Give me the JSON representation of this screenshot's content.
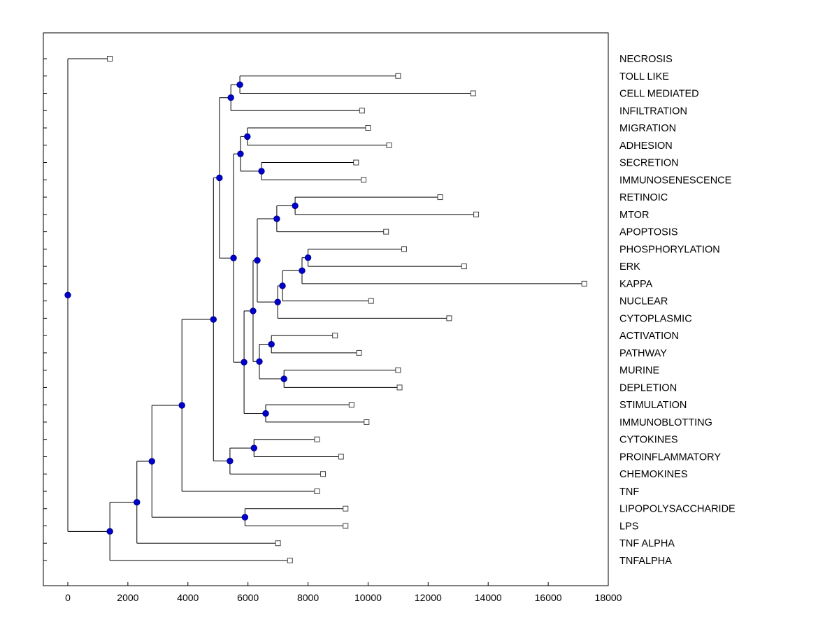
{
  "figure": {
    "background": "#FFFFFF",
    "line_color": "#000000",
    "axis_color": "#000000",
    "text_color": "#000000",
    "branch_node_color": "#0000CD",
    "branch_node_edge": "#00008B",
    "leaf_marker_fill": "#FFFFFF",
    "leaf_marker_edge": "#404040"
  },
  "chart_data": {
    "type": "tree",
    "subtype": "horizontal dendrogram (phylogenetic-style tree, root at left, leaves at right)",
    "title": "",
    "xlabel": "",
    "ylabel": "",
    "xlim": [
      0,
      18000
    ],
    "x_ticks": [
      0,
      2000,
      4000,
      6000,
      8000,
      10000,
      12000,
      14000,
      16000,
      18000
    ],
    "grid": false,
    "legend": false,
    "leaf_order": [
      "NECROSIS",
      "TOLL LIKE",
      "CELL MEDIATED",
      "INFILTRATION",
      "MIGRATION",
      "ADHESION",
      "SECRETION",
      "IMMUNOSENESCENCE",
      "RETINOIC",
      "MTOR",
      "APOPTOSIS",
      "PHOSPHORYLATION",
      "ERK",
      "KAPPA",
      "NUCLEAR",
      "CYTOPLASMIC",
      "ACTIVATION",
      "PATHWAY",
      "MURINE",
      "DEPLETION",
      "STIMULATION",
      "IMMUNOBLOTTING",
      "CYTOKINES",
      "PROINFLAMMATORY",
      "CHEMOKINES",
      "TNF",
      "LIPOPOLYSACCHARIDE",
      "LPS",
      "TNF ALPHA",
      "TNFALPHA"
    ],
    "tree": {
      "d": 0,
      "children": [
        {
          "name": "NECROSIS",
          "d": 1400
        },
        {
          "d": 1400,
          "children": [
            {
              "d": 2300,
              "children": [
                {
                  "d": 2800,
                  "children": [
                    {
                      "d": 3800,
                      "children": [
                        {
                          "d": 4850,
                          "children": [
                            {
                              "d": 5050,
                              "children": [
                                {
                                  "d": 5430,
                                  "children": [
                                    {
                                      "d": 5730,
                                      "children": [
                                        {
                                          "name": "TOLL LIKE",
                                          "d": 11000
                                        },
                                        {
                                          "name": "CELL MEDIATED",
                                          "d": 13500
                                        }
                                      ]
                                    },
                                    {
                                      "name": "INFILTRATION",
                                      "d": 9800
                                    }
                                  ]
                                },
                                {
                                  "d": 5520,
                                  "children": [
                                    {
                                      "d": 5750,
                                      "children": [
                                        {
                                          "d": 5980,
                                          "children": [
                                            {
                                              "name": "MIGRATION",
                                              "d": 10000
                                            },
                                            {
                                              "name": "ADHESION",
                                              "d": 10700
                                            }
                                          ]
                                        },
                                        {
                                          "d": 6450,
                                          "children": [
                                            {
                                              "name": "SECRETION",
                                              "d": 9600
                                            },
                                            {
                                              "name": "IMMUNOSENESCENCE",
                                              "d": 9850
                                            }
                                          ]
                                        }
                                      ]
                                    },
                                    {
                                      "d": 5870,
                                      "children": [
                                        {
                                          "d": 6170,
                                          "children": [
                                            {
                                              "d": 6310,
                                              "children": [
                                                {
                                                  "d": 6960,
                                                  "children": [
                                                    {
                                                      "d": 7570,
                                                      "children": [
                                                        {
                                                          "name": "RETINOIC",
                                                          "d": 12400
                                                        },
                                                        {
                                                          "name": "MTOR",
                                                          "d": 13600
                                                        }
                                                      ]
                                                    },
                                                    {
                                                      "name": "APOPTOSIS",
                                                      "d": 10600
                                                    }
                                                  ]
                                                },
                                                {
                                                  "d": 6990,
                                                  "children": [
                                                    {
                                                      "d": 7150,
                                                      "children": [
                                                        {
                                                          "d": 7800,
                                                          "children": [
                                                            {
                                                              "d": 8000,
                                                              "children": [
                                                                {
                                                                  "name": "PHOSPHORYLATION",
                                                                  "d": 11200
                                                                },
                                                                {
                                                                  "name": "ERK",
                                                                  "d": 13200
                                                                }
                                                              ]
                                                            },
                                                            {
                                                              "name": "KAPPA",
                                                              "d": 17200
                                                            }
                                                          ]
                                                        },
                                                        {
                                                          "name": "NUCLEAR",
                                                          "d": 10100
                                                        }
                                                      ]
                                                    },
                                                    {
                                                      "name": "CYTOPLASMIC",
                                                      "d": 12700
                                                    }
                                                  ]
                                                }
                                              ]
                                            },
                                            {
                                              "d": 6380,
                                              "children": [
                                                {
                                                  "d": 6780,
                                                  "children": [
                                                    {
                                                      "name": "ACTIVATION",
                                                      "d": 8900
                                                    },
                                                    {
                                                      "name": "PATHWAY",
                                                      "d": 9700
                                                    }
                                                  ]
                                                },
                                                {
                                                  "d": 7200,
                                                  "children": [
                                                    {
                                                      "name": "MURINE",
                                                      "d": 11000
                                                    },
                                                    {
                                                      "name": "DEPLETION",
                                                      "d": 11050
                                                    }
                                                  ]
                                                }
                                              ]
                                            }
                                          ]
                                        },
                                        {
                                          "d": 6590,
                                          "children": [
                                            {
                                              "name": "STIMULATION",
                                              "d": 9450
                                            },
                                            {
                                              "name": "IMMUNOBLOTTING",
                                              "d": 9950
                                            }
                                          ]
                                        }
                                      ]
                                    }
                                  ]
                                }
                              ]
                            },
                            {
                              "d": 5400,
                              "children": [
                                {
                                  "d": 6200,
                                  "children": [
                                    {
                                      "name": "CYTOKINES",
                                      "d": 8300
                                    },
                                    {
                                      "name": "PROINFLAMMATORY",
                                      "d": 9100
                                    }
                                  ]
                                },
                                {
                                  "name": "CHEMOKINES",
                                  "d": 8500
                                }
                              ]
                            }
                          ]
                        },
                        {
                          "name": "TNF",
                          "d": 8300
                        }
                      ]
                    },
                    {
                      "d": 5900,
                      "children": [
                        {
                          "name": "LIPOPOLYSACCHARIDE",
                          "d": 9250
                        },
                        {
                          "name": "LPS",
                          "d": 9250
                        }
                      ]
                    }
                  ]
                },
                {
                  "name": "TNF ALPHA",
                  "d": 7000
                }
              ]
            },
            {
              "name": "TNFALPHA",
              "d": 7400
            }
          ]
        }
      ]
    }
  }
}
